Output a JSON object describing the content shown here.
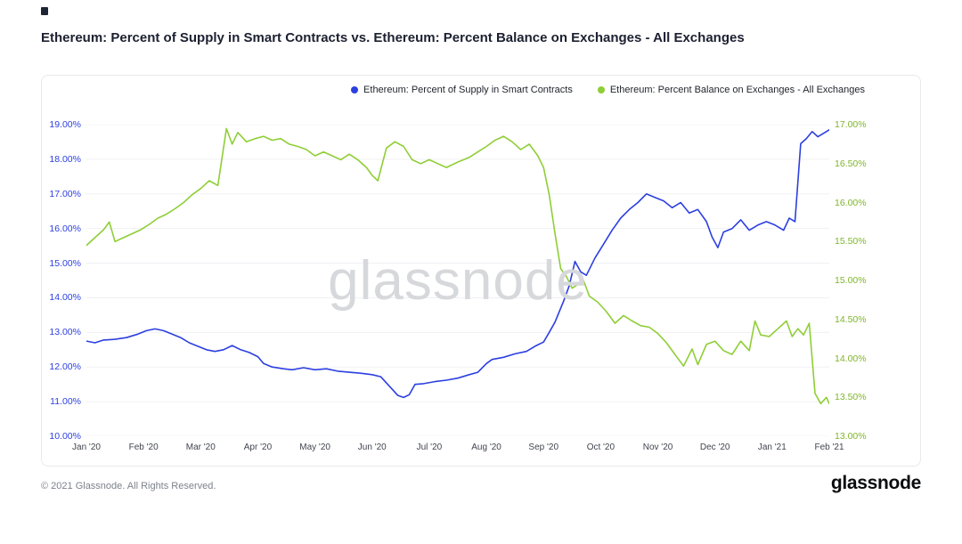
{
  "page": {
    "title": "Ethereum: Percent of Supply in Smart Contracts vs. Ethereum: Percent Balance on Exchanges - All Exchanges",
    "watermark": "glassnode",
    "footer_copyright": "© 2021 Glassnode. All Rights Reserved.",
    "footer_logo": "glassnode"
  },
  "legend": [
    {
      "label": "Ethereum: Percent of Supply in Smart Contracts",
      "color": "#2c3fe0"
    },
    {
      "label": "Ethereum: Percent Balance on Exchanges - All Exchanges",
      "color": "#8fce36"
    }
  ],
  "chart_data": {
    "type": "line",
    "title": "Ethereum: Percent of Supply in Smart Contracts vs. Ethereum: Percent Balance on Exchanges - All Exchanges",
    "grid": true,
    "legend_position": "top",
    "x_axis": {
      "span": 13,
      "labels": [
        "Jan '20",
        "Feb '20",
        "Mar '20",
        "Apr '20",
        "May '20",
        "Jun '20",
        "Jul '20",
        "Aug '20",
        "Sep '20",
        "Oct '20",
        "Nov '20",
        "Dec '20",
        "Jan '21",
        "Feb '21"
      ]
    },
    "left_axis": {
      "min": 10,
      "max": 19,
      "color": "#2c3fe0",
      "tick_values": [
        19,
        18,
        17,
        16,
        15,
        14,
        13,
        12,
        11,
        10
      ],
      "tick_labels": [
        "19.00%",
        "18.00%",
        "17.00%",
        "16.00%",
        "15.00%",
        "14.00%",
        "13.00%",
        "12.00%",
        "11.00%",
        "10.00%"
      ]
    },
    "right_axis": {
      "min": 13,
      "max": 17,
      "color": "#7fb52a",
      "tick_values": [
        17,
        16.5,
        16,
        15.5,
        15,
        14.5,
        14,
        13.5,
        13
      ],
      "tick_labels": [
        "17.00%",
        "16.50%",
        "16.00%",
        "15.50%",
        "15.00%",
        "14.50%",
        "14.00%",
        "13.50%",
        "13.00%"
      ]
    },
    "series": [
      {
        "name": "Ethereum: Percent of Supply in Smart Contracts",
        "axis": "left",
        "color": "#2c3fe0",
        "x": [
          0,
          0.15,
          0.3,
          0.5,
          0.7,
          0.9,
          1.05,
          1.2,
          1.35,
          1.5,
          1.65,
          1.8,
          1.95,
          2.1,
          2.25,
          2.4,
          2.55,
          2.7,
          2.85,
          3.0,
          3.1,
          3.25,
          3.45,
          3.6,
          3.8,
          4.0,
          4.2,
          4.4,
          4.6,
          4.8,
          5.0,
          5.15,
          5.3,
          5.45,
          5.55,
          5.65,
          5.75,
          5.9,
          6.1,
          6.3,
          6.5,
          6.7,
          6.85,
          7.0,
          7.1,
          7.3,
          7.5,
          7.7,
          7.85,
          8.0,
          8.1,
          8.2,
          8.35,
          8.45,
          8.55,
          8.65,
          8.75,
          8.9,
          9.05,
          9.2,
          9.35,
          9.5,
          9.65,
          9.8,
          9.95,
          10.1,
          10.25,
          10.4,
          10.55,
          10.7,
          10.85,
          10.95,
          11.05,
          11.15,
          11.3,
          11.45,
          11.6,
          11.75,
          11.9,
          12.05,
          12.2,
          12.3,
          12.4,
          12.5,
          12.6,
          12.7,
          12.8,
          12.9,
          13.0
        ],
        "y": [
          12.75,
          12.7,
          12.78,
          12.8,
          12.85,
          12.95,
          13.05,
          13.1,
          13.05,
          12.95,
          12.85,
          12.7,
          12.6,
          12.5,
          12.45,
          12.5,
          12.62,
          12.5,
          12.42,
          12.3,
          12.1,
          12.0,
          11.95,
          11.92,
          11.98,
          11.92,
          11.95,
          11.88,
          11.85,
          11.82,
          11.78,
          11.72,
          11.45,
          11.18,
          11.12,
          11.2,
          11.5,
          11.52,
          11.58,
          11.62,
          11.68,
          11.78,
          11.85,
          12.1,
          12.22,
          12.28,
          12.38,
          12.45,
          12.6,
          12.72,
          13.0,
          13.3,
          13.9,
          14.35,
          15.05,
          14.75,
          14.65,
          15.15,
          15.55,
          15.95,
          16.3,
          16.55,
          16.75,
          17.0,
          16.9,
          16.8,
          16.6,
          16.75,
          16.45,
          16.55,
          16.2,
          15.75,
          15.45,
          15.9,
          16.0,
          16.25,
          15.95,
          16.1,
          16.2,
          16.1,
          15.95,
          16.3,
          16.2,
          18.45,
          18.6,
          18.8,
          18.65,
          18.75,
          18.85
        ]
      },
      {
        "name": "Ethereum: Percent Balance on Exchanges - All Exchanges",
        "axis": "right",
        "color": "#8fce36",
        "x": [
          0,
          0.15,
          0.3,
          0.4,
          0.5,
          0.65,
          0.8,
          0.95,
          1.1,
          1.25,
          1.4,
          1.55,
          1.7,
          1.85,
          2.0,
          2.15,
          2.3,
          2.45,
          2.55,
          2.65,
          2.8,
          2.95,
          3.1,
          3.25,
          3.4,
          3.55,
          3.7,
          3.85,
          4.0,
          4.15,
          4.3,
          4.45,
          4.6,
          4.75,
          4.9,
          5.0,
          5.1,
          5.25,
          5.4,
          5.55,
          5.7,
          5.85,
          6.0,
          6.15,
          6.3,
          6.5,
          6.7,
          6.85,
          7.0,
          7.15,
          7.3,
          7.45,
          7.6,
          7.75,
          7.9,
          8.0,
          8.1,
          8.2,
          8.3,
          8.4,
          8.5,
          8.6,
          8.7,
          8.8,
          8.95,
          9.1,
          9.25,
          9.4,
          9.55,
          9.7,
          9.85,
          10.0,
          10.15,
          10.3,
          10.45,
          10.6,
          10.7,
          10.85,
          11.0,
          11.15,
          11.3,
          11.45,
          11.6,
          11.7,
          11.8,
          11.95,
          12.1,
          12.25,
          12.35,
          12.45,
          12.55,
          12.65,
          12.75,
          12.85,
          12.95,
          13.0
        ],
        "y": [
          15.45,
          15.55,
          15.65,
          15.75,
          15.5,
          15.55,
          15.6,
          15.65,
          15.72,
          15.8,
          15.85,
          15.92,
          16.0,
          16.1,
          16.18,
          16.28,
          16.22,
          16.95,
          16.75,
          16.9,
          16.78,
          16.82,
          16.85,
          16.8,
          16.82,
          16.75,
          16.72,
          16.68,
          16.6,
          16.65,
          16.6,
          16.55,
          16.62,
          16.55,
          16.45,
          16.35,
          16.28,
          16.7,
          16.78,
          16.72,
          16.55,
          16.5,
          16.55,
          16.5,
          16.45,
          16.52,
          16.58,
          16.65,
          16.72,
          16.8,
          16.85,
          16.78,
          16.68,
          16.75,
          16.6,
          16.45,
          16.1,
          15.6,
          15.15,
          15.05,
          14.9,
          14.95,
          15.0,
          14.8,
          14.72,
          14.6,
          14.45,
          14.55,
          14.48,
          14.42,
          14.4,
          14.32,
          14.2,
          14.05,
          13.9,
          14.12,
          13.92,
          14.18,
          14.22,
          14.1,
          14.05,
          14.22,
          14.1,
          14.48,
          14.3,
          14.28,
          14.38,
          14.48,
          14.28,
          14.38,
          14.3,
          14.45,
          13.55,
          13.42,
          13.5,
          13.42
        ]
      }
    ]
  }
}
